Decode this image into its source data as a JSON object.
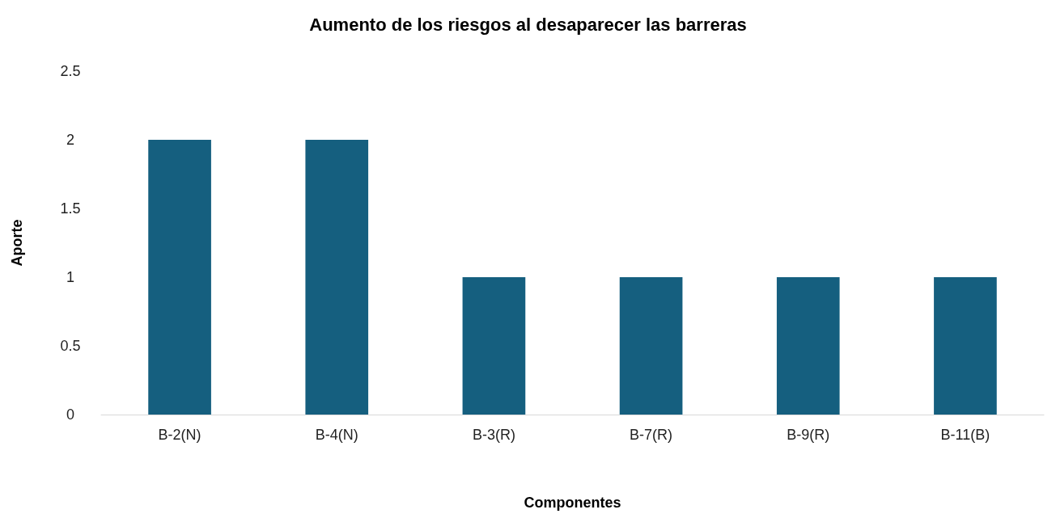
{
  "chart_data": {
    "type": "bar",
    "title": "Aumento de los riesgos al desaparecer las barreras",
    "xlabel": "Componentes",
    "ylabel": "Aporte",
    "categories": [
      "B-2(N)",
      "B-4(N)",
      "B-3(R)",
      "B-7(R)",
      "B-9(R)",
      "B-11(B)"
    ],
    "values": [
      2,
      2,
      1,
      1,
      1,
      1
    ],
    "color": "#155f7f",
    "ylim": [
      0,
      2.5
    ],
    "yticks": [
      0,
      0.5,
      1,
      1.5,
      2,
      2.5
    ],
    "grid": false
  }
}
